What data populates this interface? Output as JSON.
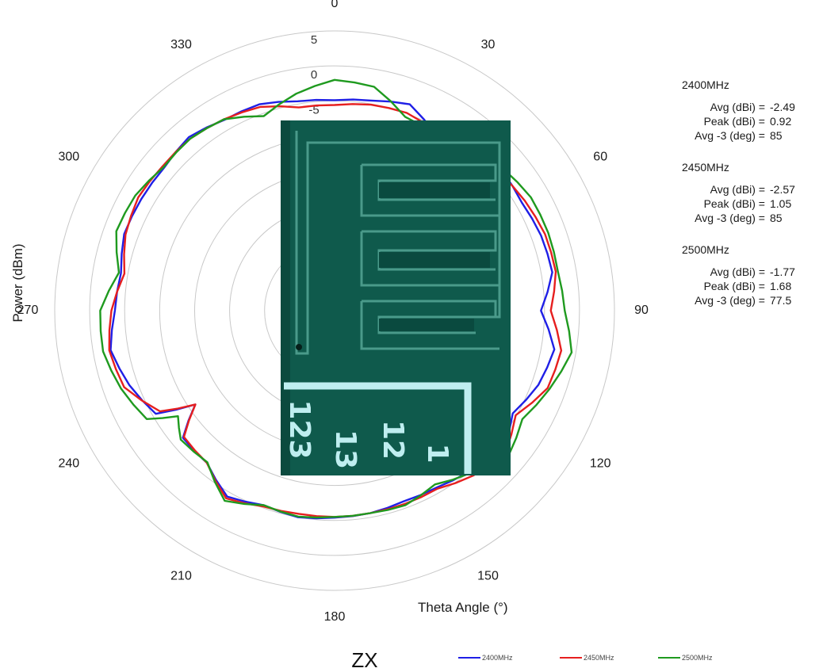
{
  "chart_data": {
    "type": "polar-line",
    "subplot_title": "ZX",
    "xlabel": "Theta  Angle (°)",
    "ylabel": "Power (dBm)",
    "angle_ticks": [
      "0",
      "30",
      "60",
      "90",
      "120",
      "150",
      "180",
      "210",
      "240",
      "270",
      "300",
      "330"
    ],
    "radial_tick_labels": [
      "5",
      "0",
      "-5"
    ],
    "radial_range": [
      -35,
      5
    ],
    "radial_step": 5,
    "grid": true,
    "legend_position": "bottom-right",
    "colors": {
      "2400MHz": "#1f1fe6",
      "2450MHz": "#e61f1f",
      "2500MHz": "#1f9a1f"
    },
    "series": [
      {
        "name": "2400MHz",
        "theta": [
          0,
          10,
          20,
          30,
          40,
          50,
          60,
          70,
          80,
          90,
          100,
          110,
          120,
          130,
          140,
          150,
          160,
          170,
          180,
          190,
          200,
          210,
          220,
          230,
          236,
          240,
          250,
          260,
          270,
          280,
          290,
          300,
          310,
          320,
          330,
          340,
          350
        ],
        "values": [
          -4.9,
          -4.5,
          -3.6,
          -6.0,
          -6.5,
          -3.8,
          -4.1,
          -3.6,
          -3.4,
          -5.5,
          -3.1,
          -4.0,
          -5.6,
          -3.6,
          -5.0,
          -5.8,
          -6.0,
          -5.6,
          -5.4,
          -5.0,
          -5.4,
          -4.3,
          -6.6,
          -6.7,
          -11.0,
          -5.5,
          -3.8,
          -2.5,
          -3.6,
          -4.0,
          -3.0,
          -3.1,
          -3.2,
          -2.6,
          -3.5,
          -3.6,
          -4.6
        ],
        "stats": {
          "avg_label": "Avg (dBi) =",
          "avg": "-2.49",
          "peak_label": "Peak (dBi) =",
          "peak": "0.92",
          "avg3_label": "Avg -3 (deg) =",
          "avg3": "85"
        }
      },
      {
        "name": "2450MHz",
        "theta": [
          0,
          10,
          20,
          30,
          40,
          50,
          60,
          70,
          80,
          90,
          100,
          110,
          120,
          130,
          140,
          150,
          160,
          170,
          180,
          190,
          200,
          210,
          220,
          230,
          236,
          240,
          250,
          260,
          270,
          280,
          290,
          300,
          310,
          320,
          330,
          340,
          350
        ],
        "values": [
          -5.6,
          -5.1,
          -4.9,
          -5.6,
          -6.2,
          -4.3,
          -3.6,
          -3.0,
          -2.9,
          -4.1,
          -2.1,
          -2.6,
          -5.1,
          -3.2,
          -4.2,
          -5.6,
          -5.6,
          -5.6,
          -5.5,
          -5.5,
          -5.2,
          -4.0,
          -6.6,
          -6.9,
          -11.0,
          -6.2,
          -3.0,
          -2.3,
          -3.1,
          -4.5,
          -3.2,
          -2.6,
          -2.9,
          -2.9,
          -3.4,
          -4.0,
          -5.5
        ],
        "stats": {
          "avg_label": "Avg (dBi) =",
          "avg": "-2.57",
          "peak_label": "Peak (dBi) =",
          "peak": "1.05",
          "avg3_label": "Avg -3 (deg) =",
          "avg3": "85"
        }
      },
      {
        "name": "2500MHz",
        "theta": [
          0,
          10,
          20,
          30,
          40,
          50,
          60,
          70,
          80,
          90,
          100,
          110,
          120,
          130,
          140,
          150,
          160,
          170,
          180,
          190,
          200,
          210,
          220,
          230,
          236,
          240,
          250,
          260,
          270,
          280,
          290,
          300,
          310,
          320,
          330,
          340,
          350
        ],
        "values": [
          -2.0,
          -2.5,
          -5.5,
          -6.0,
          -5.5,
          -3.5,
          -2.6,
          -2.5,
          -2.6,
          -2.1,
          -0.6,
          -2.3,
          -4.0,
          -2.6,
          -4.7,
          -6.3,
          -5.4,
          -5.6,
          -5.5,
          -5.1,
          -5.4,
          -3.6,
          -6.7,
          -6.3,
          -8.0,
          -4.0,
          -2.5,
          -1.4,
          -1.5,
          -3.7,
          -1.8,
          -2.1,
          -3.1,
          -2.9,
          -3.4,
          -5.4,
          -3.5
        ],
        "stats": {
          "avg_label": "Avg (dBi) =",
          "avg": "-1.77",
          "peak_label": "Peak (dBi) =",
          "peak": "1.68",
          "avg3_label": "Avg -3 (deg) =",
          "avg3": "77.5"
        }
      }
    ],
    "inset": {
      "description_icon": "antenna-pcb-photo",
      "board_color": "#0f5a4c",
      "trace_color": "#4a9a8a",
      "silkscreen_color": "#bfeef0",
      "markings": [
        "1",
        "12",
        "13",
        "123"
      ]
    }
  }
}
